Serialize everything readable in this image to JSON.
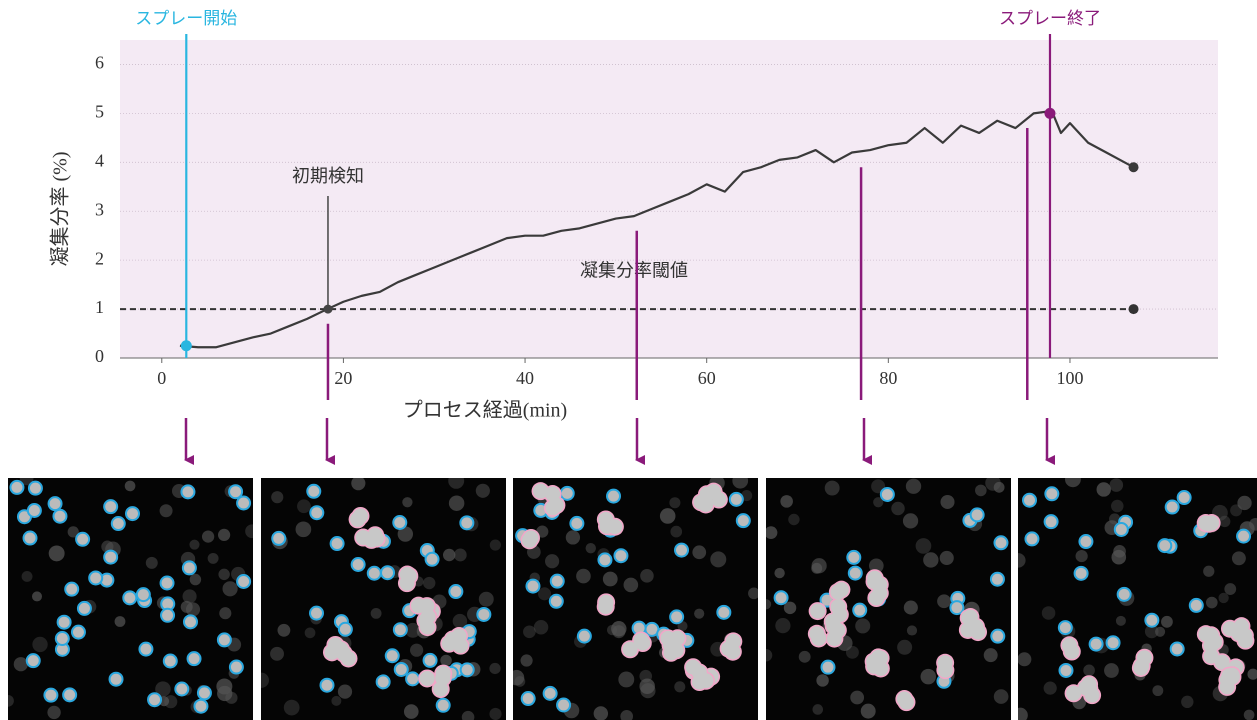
{
  "chart_data": {
    "type": "line",
    "x_label": "プロセス経過(min)",
    "y_label": "凝集分率 (%)",
    "x": [
      2,
      4,
      6,
      8,
      10,
      12,
      14,
      16,
      18,
      20,
      22,
      24,
      26,
      28,
      30,
      32,
      34,
      36,
      38,
      40,
      42,
      44,
      46,
      48,
      50,
      52,
      54,
      56,
      58,
      60,
      62,
      64,
      66,
      68,
      70,
      72,
      74,
      76,
      78,
      80,
      82,
      84,
      86,
      88,
      90,
      92,
      94,
      96,
      98,
      99,
      100,
      102,
      104,
      106,
      107
    ],
    "values": [
      0.25,
      0.22,
      0.22,
      0.32,
      0.42,
      0.5,
      0.65,
      0.8,
      0.98,
      1.15,
      1.27,
      1.35,
      1.55,
      1.7,
      1.85,
      2.0,
      2.15,
      2.3,
      2.45,
      2.5,
      2.5,
      2.6,
      2.65,
      2.75,
      2.85,
      2.9,
      3.05,
      3.2,
      3.35,
      3.55,
      3.4,
      3.8,
      3.9,
      4.05,
      4.1,
      4.25,
      4.0,
      4.2,
      4.25,
      4.35,
      4.4,
      4.7,
      4.4,
      4.75,
      4.6,
      4.85,
      4.7,
      5.0,
      5.05,
      4.6,
      4.8,
      4.4,
      4.2,
      4.0,
      3.9
    ],
    "color": "#3a3a3a",
    "xlim": [
      -4.6,
      116.3
    ],
    "ylim": [
      0,
      6.5
    ],
    "xticks": [
      0,
      20,
      40,
      60,
      80,
      100
    ],
    "yticks": [
      0,
      1,
      2,
      3,
      4,
      5,
      6
    ],
    "grid": true,
    "threshold": {
      "label": "凝集分率閾値",
      "value": 1.0,
      "color": "#333333"
    },
    "events": [
      {
        "label": "スプレー開始",
        "x": 2.7,
        "y": 0.25,
        "color": "#29b6e0"
      },
      {
        "label": "スプレー終了",
        "x": 97.8,
        "y": 5.0,
        "color": "#8a1a7a"
      }
    ],
    "detection": {
      "label": "初期検知",
      "x": 18.3,
      "y": 1.0,
      "color": "#444444"
    }
  }
}
